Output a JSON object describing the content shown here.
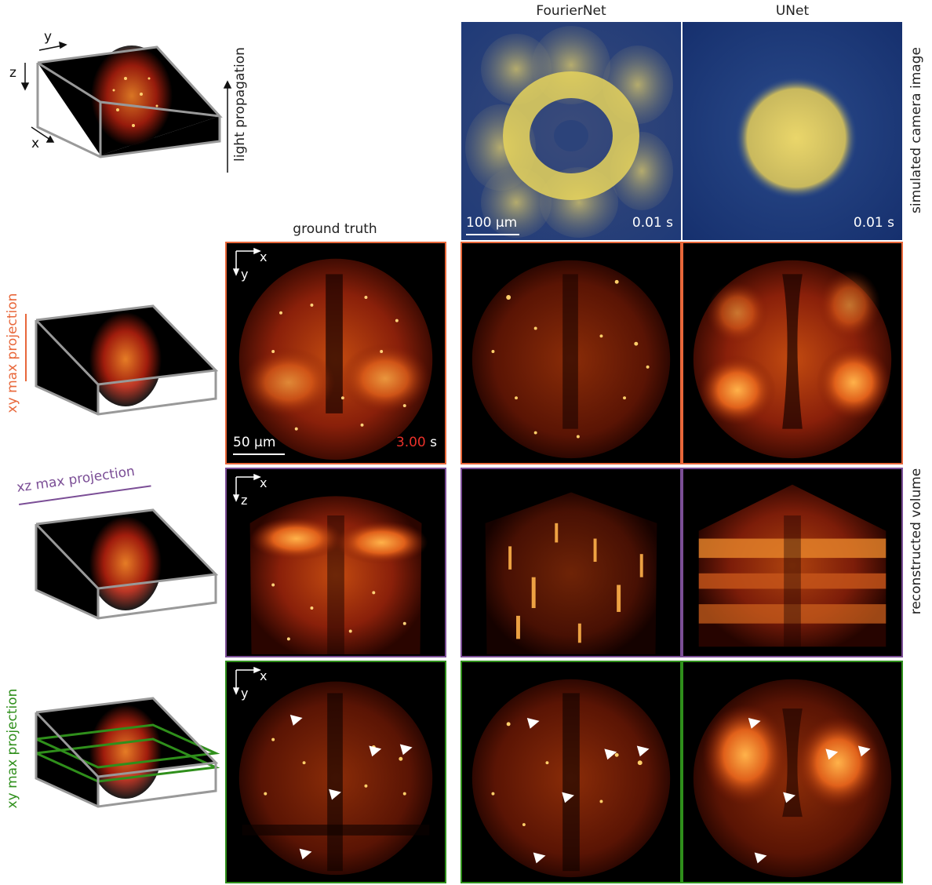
{
  "columns": {
    "ground_truth": "ground truth",
    "fouriernet": "FourierNet",
    "unet": "UNet"
  },
  "row_labels": {
    "camera": "simulated camera image",
    "reconstructed": "reconstructed volume"
  },
  "left_labels": {
    "light": "light propagation",
    "xy_max": "xy max projection",
    "xz_max": "xz max projection",
    "xy_slab": "xy max projection"
  },
  "axes": {
    "x": "x",
    "y": "y",
    "z": "z"
  },
  "camera": {
    "scale": "100 µm",
    "time_fouriernet": "0.01 s",
    "time_unet": "0.01 s"
  },
  "gt": {
    "scale": "50 µm",
    "time_value": "3.00",
    "time_unit": "s"
  },
  "colors": {
    "xy_row": "#e8673a",
    "xz_row": "#7b4e96",
    "slab_row": "#2f8f1b",
    "gt_time": "#e8312a",
    "camera_bg": "#1f3a78",
    "camera_signal": "#e8d060"
  }
}
